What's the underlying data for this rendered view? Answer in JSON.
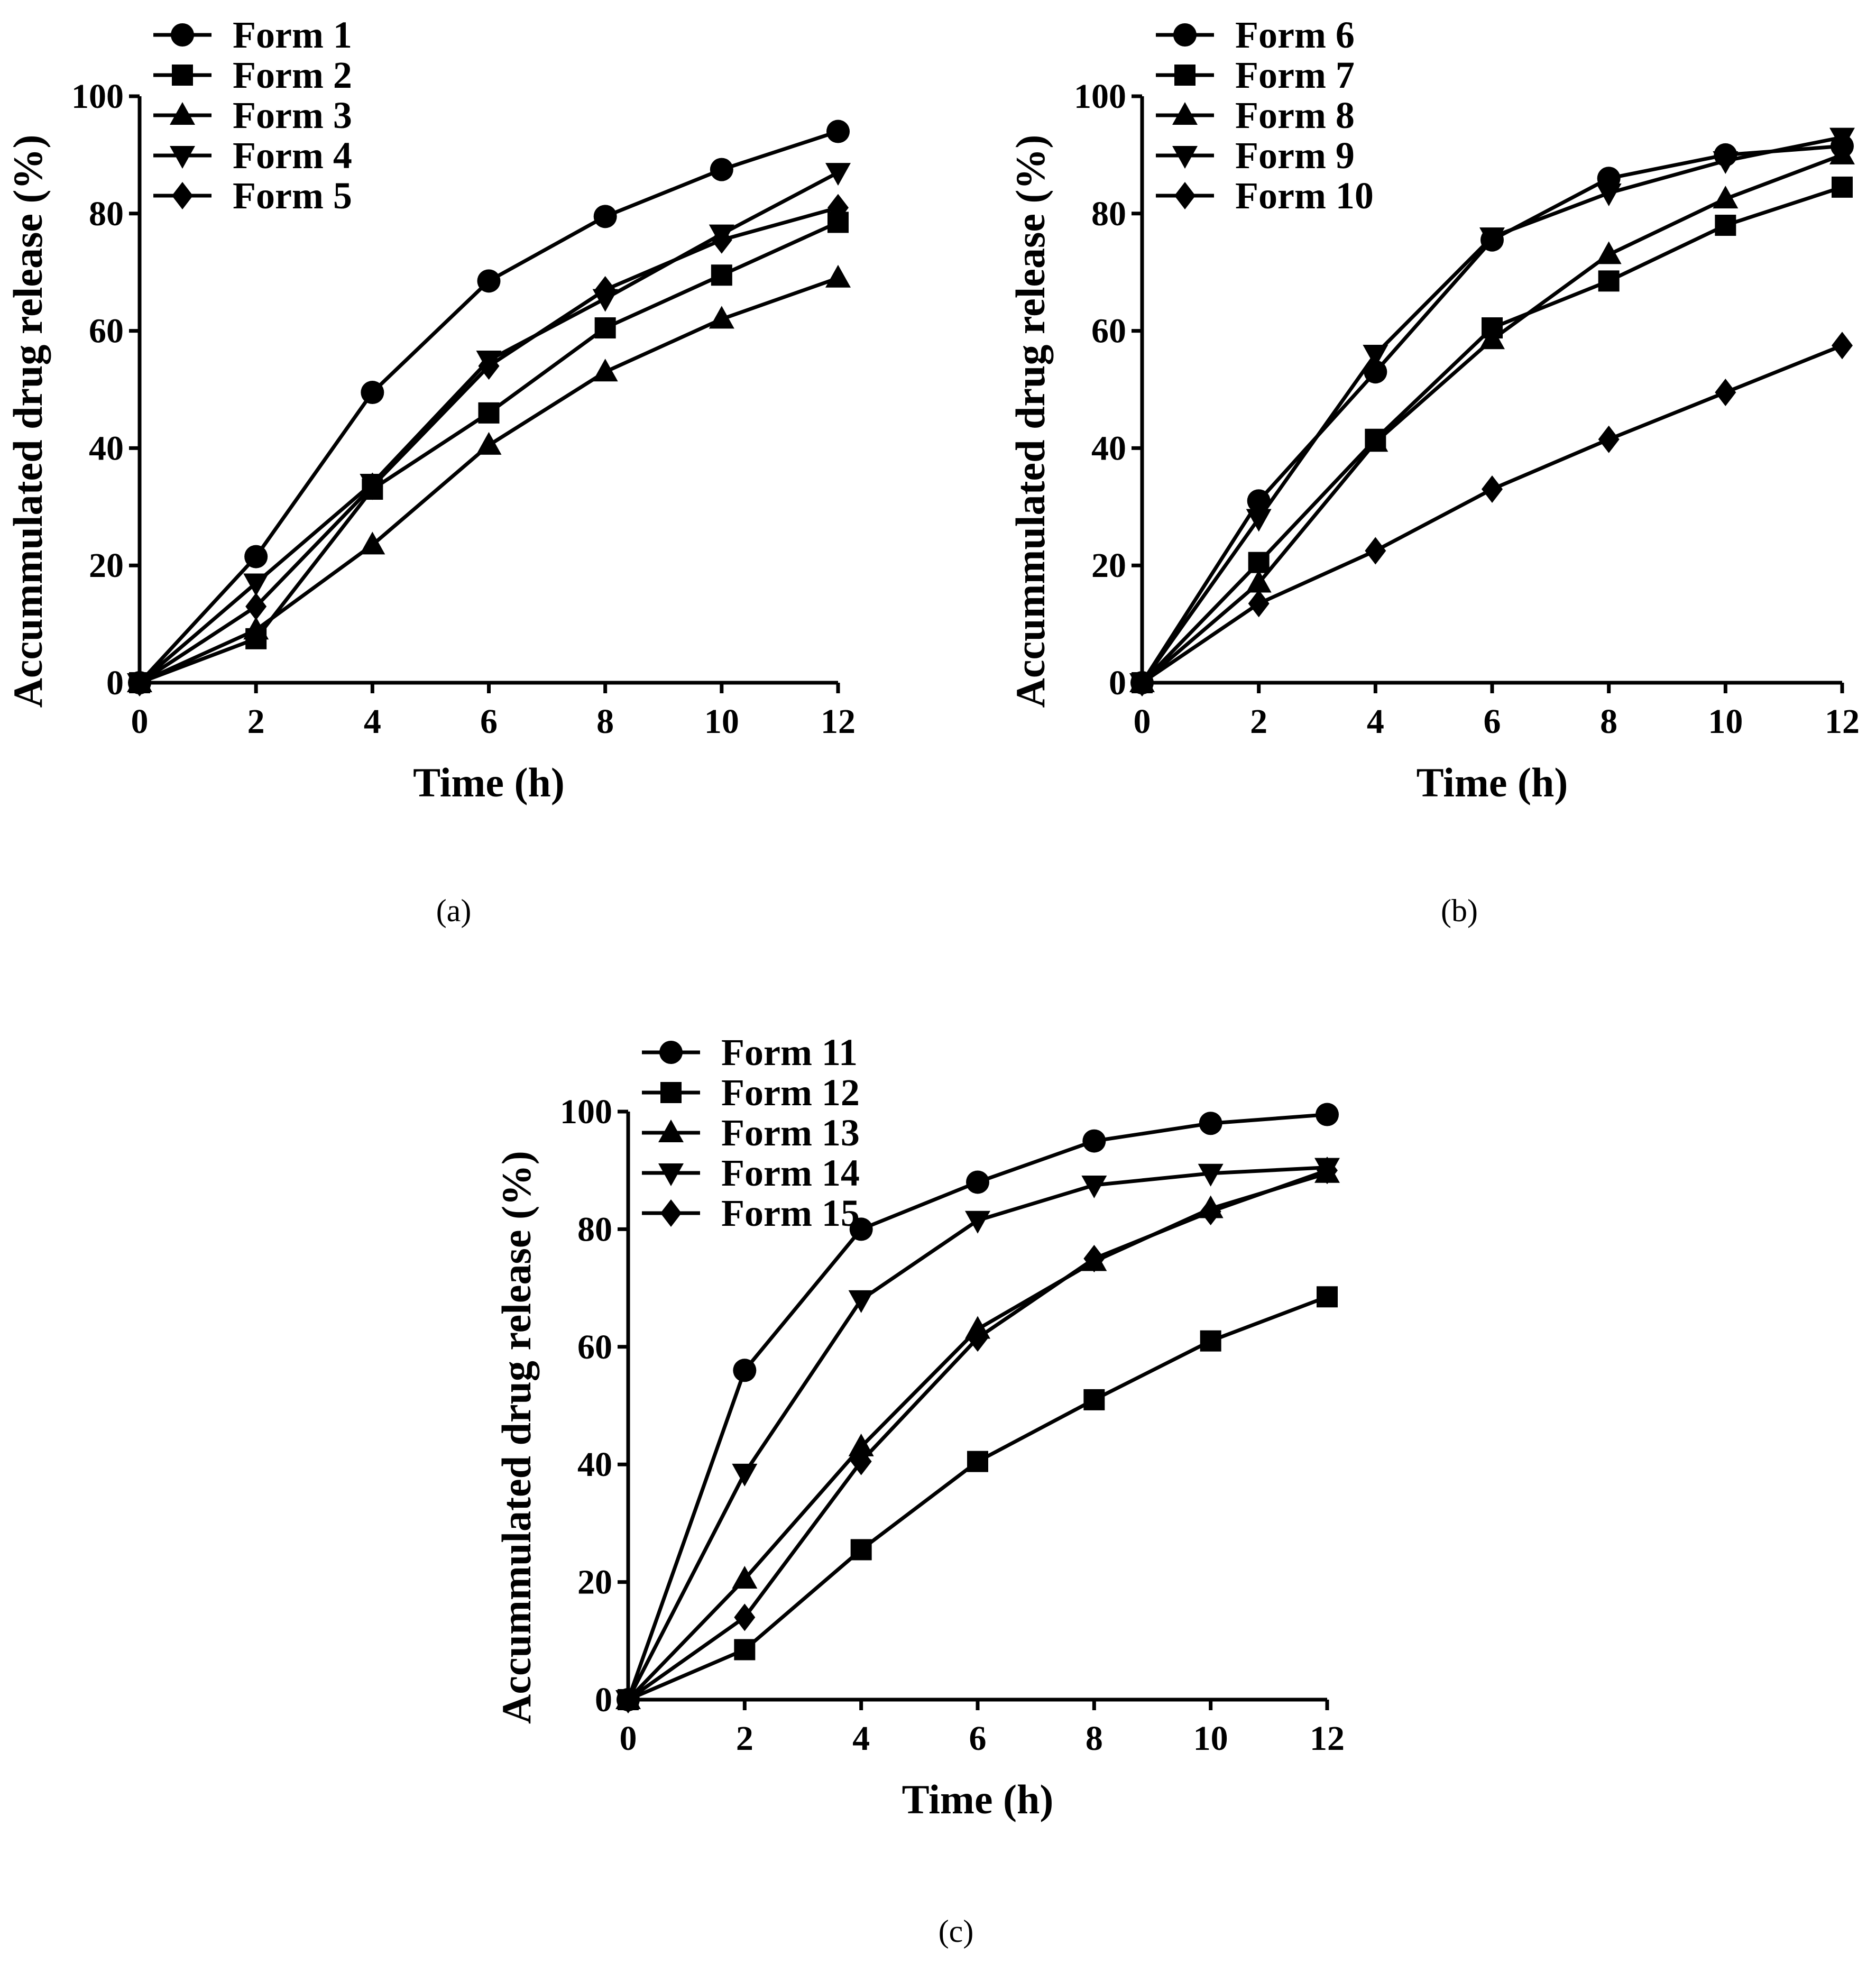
{
  "figure_caption_labels": [
    "(a)",
    "(b)",
    "(c)"
  ],
  "chart_data": [
    {
      "type": "line",
      "panel": "(a)",
      "xlabel": "Time (h)",
      "ylabel": "Accummulated drug release (%)",
      "xlim": [
        0,
        12
      ],
      "ylim": [
        0,
        100
      ],
      "x_ticks": [
        0,
        2,
        4,
        6,
        8,
        10,
        12
      ],
      "y_ticks": [
        0,
        20,
        40,
        60,
        80,
        100
      ],
      "legend_position": "top-left",
      "x": [
        0,
        2,
        4,
        6,
        8,
        10,
        12
      ],
      "series": [
        {
          "name": "Form 1",
          "marker": "circle",
          "values": [
            0,
            21.5,
            49.5,
            68.5,
            79.5,
            87.5,
            94
          ]
        },
        {
          "name": "Form 2",
          "marker": "square",
          "values": [
            0,
            7.5,
            33,
            46,
            60.5,
            69.5,
            78.5
          ]
        },
        {
          "name": "Form 3",
          "marker": "triangle-up",
          "values": [
            0,
            9,
            23.5,
            40.5,
            53,
            62,
            69
          ]
        },
        {
          "name": "Form 4",
          "marker": "triangle-down",
          "values": [
            0,
            17,
            34,
            55,
            65.5,
            76.5,
            87
          ]
        },
        {
          "name": "Form 5",
          "marker": "diamond",
          "values": [
            0,
            13,
            33.5,
            54,
            67,
            75.5,
            81
          ]
        }
      ]
    },
    {
      "type": "line",
      "panel": "(b)",
      "xlabel": "Time (h)",
      "ylabel": "Accummulated drug release (%)",
      "xlim": [
        0,
        12
      ],
      "ylim": [
        0,
        100
      ],
      "x_ticks": [
        0,
        2,
        4,
        6,
        8,
        10,
        12
      ],
      "y_ticks": [
        0,
        20,
        40,
        60,
        80,
        100
      ],
      "legend_position": "top-left",
      "x": [
        0,
        2,
        4,
        6,
        8,
        10,
        12
      ],
      "series": [
        {
          "name": "Form 6",
          "marker": "circle",
          "values": [
            0,
            31,
            53,
            75.5,
            86,
            90,
            91.5
          ]
        },
        {
          "name": "Form 7",
          "marker": "square",
          "values": [
            0,
            20.5,
            41.5,
            60.5,
            68.5,
            78,
            84.5
          ]
        },
        {
          "name": "Form 8",
          "marker": "triangle-up",
          "values": [
            0,
            17,
            41,
            58.5,
            73,
            82.5,
            90
          ]
        },
        {
          "name": "Form 9",
          "marker": "triangle-down",
          "values": [
            0,
            28,
            56,
            76,
            83.5,
            89,
            93
          ]
        },
        {
          "name": "Form 10",
          "marker": "diamond",
          "values": [
            0,
            13.5,
            22.5,
            33,
            41.5,
            49.5,
            57.5
          ]
        }
      ]
    },
    {
      "type": "line",
      "panel": "(c)",
      "xlabel": "Time (h)",
      "ylabel": "Accummulated drug release (%)",
      "xlim": [
        0,
        12
      ],
      "ylim": [
        0,
        100
      ],
      "x_ticks": [
        0,
        2,
        4,
        6,
        8,
        10,
        12
      ],
      "y_ticks": [
        0,
        20,
        40,
        60,
        80,
        100
      ],
      "legend_position": "top-left",
      "x": [
        0,
        2,
        4,
        6,
        8,
        10,
        12
      ],
      "series": [
        {
          "name": "Form 11",
          "marker": "circle",
          "values": [
            0,
            56,
            80,
            88,
            95,
            98,
            99.5
          ]
        },
        {
          "name": "Form 12",
          "marker": "square",
          "values": [
            0,
            8.5,
            25.5,
            40.5,
            51,
            61,
            68.5
          ]
        },
        {
          "name": "Form 13",
          "marker": "triangle-up",
          "values": [
            0,
            20.5,
            43,
            63,
            74.5,
            83.5,
            89.5
          ]
        },
        {
          "name": "Form 14",
          "marker": "triangle-down",
          "values": [
            0,
            38.5,
            68,
            81.5,
            87.5,
            89.5,
            90.5
          ]
        },
        {
          "name": "Form 15",
          "marker": "diamond",
          "values": [
            0,
            14,
            40.5,
            61.5,
            75,
            83,
            90
          ]
        }
      ]
    }
  ]
}
